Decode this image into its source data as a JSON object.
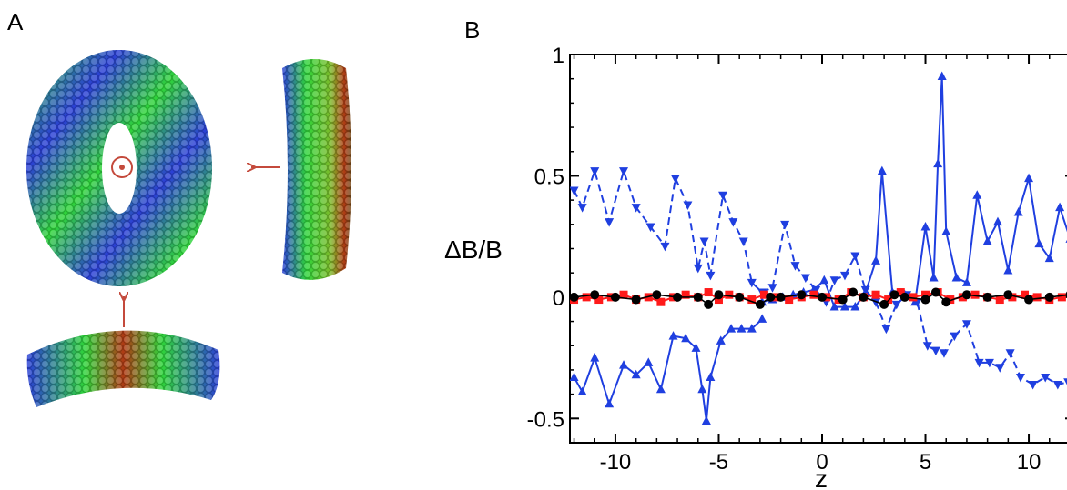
{
  "panels": {
    "a_label": "A",
    "b_label": "B"
  },
  "colors": {
    "arrow": "#c44a3c",
    "torus_blue": "#2b3fd6",
    "torus_green": "#2fd43a",
    "torus_red": "#b03a14",
    "series_blue": "#1f3fe0",
    "series_red": "#ff1a1a",
    "series_black": "#000000"
  },
  "chart_data": {
    "type": "line",
    "title": "",
    "xlabel": "z",
    "ylabel": "ΔB/B",
    "xlim": [
      -12.2,
      12.2
    ],
    "ylim": [
      -0.6,
      1.0
    ],
    "xticks": [
      -10,
      -5,
      0,
      5,
      10
    ],
    "xtick_labels": [
      "-10",
      "-5",
      "0",
      "5",
      "10"
    ],
    "yticks": [
      -0.5,
      0,
      0.5,
      1
    ],
    "ytick_labels": [
      "-0.5",
      "0",
      "0.5",
      "1"
    ],
    "grid": false,
    "series": [
      {
        "style": "blue-solid-up-triangles-upper",
        "color": "#1f3fe0",
        "dash": false,
        "marker": "triangle-up",
        "filled": true,
        "x": [
          -2.9,
          -2.4,
          -1.9,
          -1.4,
          -0.9,
          -0.4,
          0.1,
          0.6,
          1.1,
          1.6,
          2.1,
          2.6,
          2.9,
          3.4,
          4.0,
          4.5,
          5.0,
          5.4,
          5.6,
          5.8,
          6.0,
          6.5,
          7.0,
          7.5,
          8.0,
          8.5,
          9.0,
          9.5,
          10.0,
          10.5,
          11.0,
          11.5,
          12.0
        ],
        "y": [
          -0.02,
          -0.01,
          0.0,
          0.01,
          0.02,
          0.03,
          0.07,
          -0.04,
          -0.04,
          -0.04,
          0.02,
          0.15,
          0.52,
          0.02,
          0.01,
          -0.02,
          0.29,
          0.08,
          0.55,
          0.91,
          0.27,
          0.08,
          0.06,
          0.42,
          0.23,
          0.31,
          0.11,
          0.35,
          0.49,
          0.22,
          0.16,
          0.37,
          0.24
        ]
      },
      {
        "style": "blue-solid-up-triangles-lower",
        "color": "#1f3fe0",
        "dash": false,
        "marker": "triangle-up",
        "filled": true,
        "x": [
          -12.0,
          -11.6,
          -11.0,
          -10.3,
          -9.6,
          -9.0,
          -8.4,
          -7.8,
          -7.2,
          -6.6,
          -6.1,
          -5.8,
          -5.6,
          -5.4,
          -4.9,
          -4.4,
          -3.9,
          -3.4,
          -2.9
        ],
        "y": [
          -0.33,
          -0.39,
          -0.25,
          -0.44,
          -0.28,
          -0.32,
          -0.27,
          -0.38,
          -0.16,
          -0.17,
          -0.21,
          -0.38,
          -0.51,
          -0.33,
          -0.18,
          -0.13,
          -0.13,
          -0.13,
          -0.09
        ]
      },
      {
        "style": "blue-dashed-down-triangles-upper",
        "color": "#1f3fe0",
        "dash": true,
        "marker": "triangle-down",
        "filled": true,
        "x": [
          -12.0,
          -11.6,
          -11.0,
          -10.3,
          -9.6,
          -9.0,
          -8.3,
          -7.6,
          -7.1,
          -6.5,
          -6.0,
          -5.7,
          -5.4,
          -4.8,
          -4.3,
          -3.8,
          -3.4,
          -2.9,
          -2.4,
          -1.8,
          -1.3,
          -0.8,
          -0.3,
          0.2,
          0.6,
          1.1,
          1.6,
          2.1,
          2.6
        ],
        "y": [
          0.44,
          0.37,
          0.52,
          0.31,
          0.52,
          0.37,
          0.29,
          0.21,
          0.49,
          0.38,
          0.12,
          0.23,
          0.09,
          0.42,
          0.31,
          0.23,
          0.06,
          0.02,
          0.04,
          0.3,
          0.13,
          0.08,
          0.03,
          -0.02,
          0.07,
          0.09,
          0.17,
          0.03,
          -0.02
        ]
      },
      {
        "style": "blue-dashed-down-triangles-lower",
        "color": "#1f3fe0",
        "dash": true,
        "marker": "triangle-down",
        "filled": true,
        "x": [
          2.6,
          3.1,
          3.6,
          4.1,
          4.6,
          5.1,
          5.5,
          5.9,
          6.4,
          7.0,
          7.6,
          8.1,
          8.6,
          9.1,
          9.6,
          10.2,
          10.8,
          11.4,
          11.9
        ],
        "y": [
          -0.02,
          -0.13,
          -0.03,
          0.01,
          -0.02,
          -0.2,
          -0.22,
          -0.23,
          -0.16,
          -0.11,
          -0.27,
          -0.27,
          -0.29,
          -0.23,
          -0.33,
          -0.36,
          -0.33,
          -0.36,
          -0.35
        ]
      },
      {
        "style": "red-squares",
        "color": "#ff1a1a",
        "dash": false,
        "marker": "square",
        "filled": true,
        "x": [
          -12.0,
          -11.4,
          -10.8,
          -10.2,
          -9.6,
          -9.0,
          -8.4,
          -7.8,
          -7.2,
          -6.6,
          -6.0,
          -5.5,
          -5.0,
          -4.5,
          -4.0,
          -3.4,
          -2.8,
          -2.2,
          -1.6,
          -1.0,
          -0.4,
          0.2,
          0.8,
          1.4,
          2.0,
          2.6,
          3.2,
          3.8,
          4.4,
          5.0,
          5.6,
          6.2,
          6.8,
          7.4,
          8.0,
          8.6,
          9.2,
          9.8,
          10.4,
          11.0,
          11.6
        ],
        "y": [
          -0.01,
          0.0,
          -0.01,
          0.0,
          0.01,
          -0.01,
          0.0,
          -0.02,
          0.0,
          0.01,
          0.0,
          0.02,
          -0.01,
          0.01,
          0.0,
          -0.01,
          0.01,
          0.0,
          -0.01,
          0.0,
          0.01,
          0.0,
          -0.01,
          0.02,
          0.0,
          0.01,
          -0.01,
          0.02,
          0.0,
          0.01,
          0.02,
          -0.01,
          0.0,
          0.01,
          0.0,
          -0.01,
          0.0,
          0.01,
          0.0,
          -0.01,
          0.0
        ]
      },
      {
        "style": "black-circles",
        "color": "#000000",
        "dash": false,
        "marker": "circle",
        "filled": true,
        "x": [
          -12.0,
          -11.0,
          -10.0,
          -9.0,
          -8.0,
          -7.0,
          -6.0,
          -5.5,
          -5.0,
          -4.0,
          -3.0,
          -2.5,
          -2.0,
          -1.0,
          0.0,
          1.0,
          1.5,
          2.0,
          3.0,
          3.5,
          4.0,
          5.0,
          5.5,
          6.0,
          7.0,
          8.0,
          9.0,
          10.0,
          11.0,
          12.0
        ],
        "y": [
          0.0,
          0.01,
          0.0,
          -0.01,
          0.01,
          0.0,
          0.0,
          -0.03,
          0.01,
          0.0,
          -0.03,
          0.0,
          0.0,
          0.01,
          0.0,
          -0.01,
          0.02,
          0.0,
          -0.03,
          0.01,
          0.0,
          -0.01,
          0.02,
          -0.02,
          0.01,
          0.0,
          0.01,
          -0.01,
          0.0,
          0.01
        ]
      }
    ]
  }
}
